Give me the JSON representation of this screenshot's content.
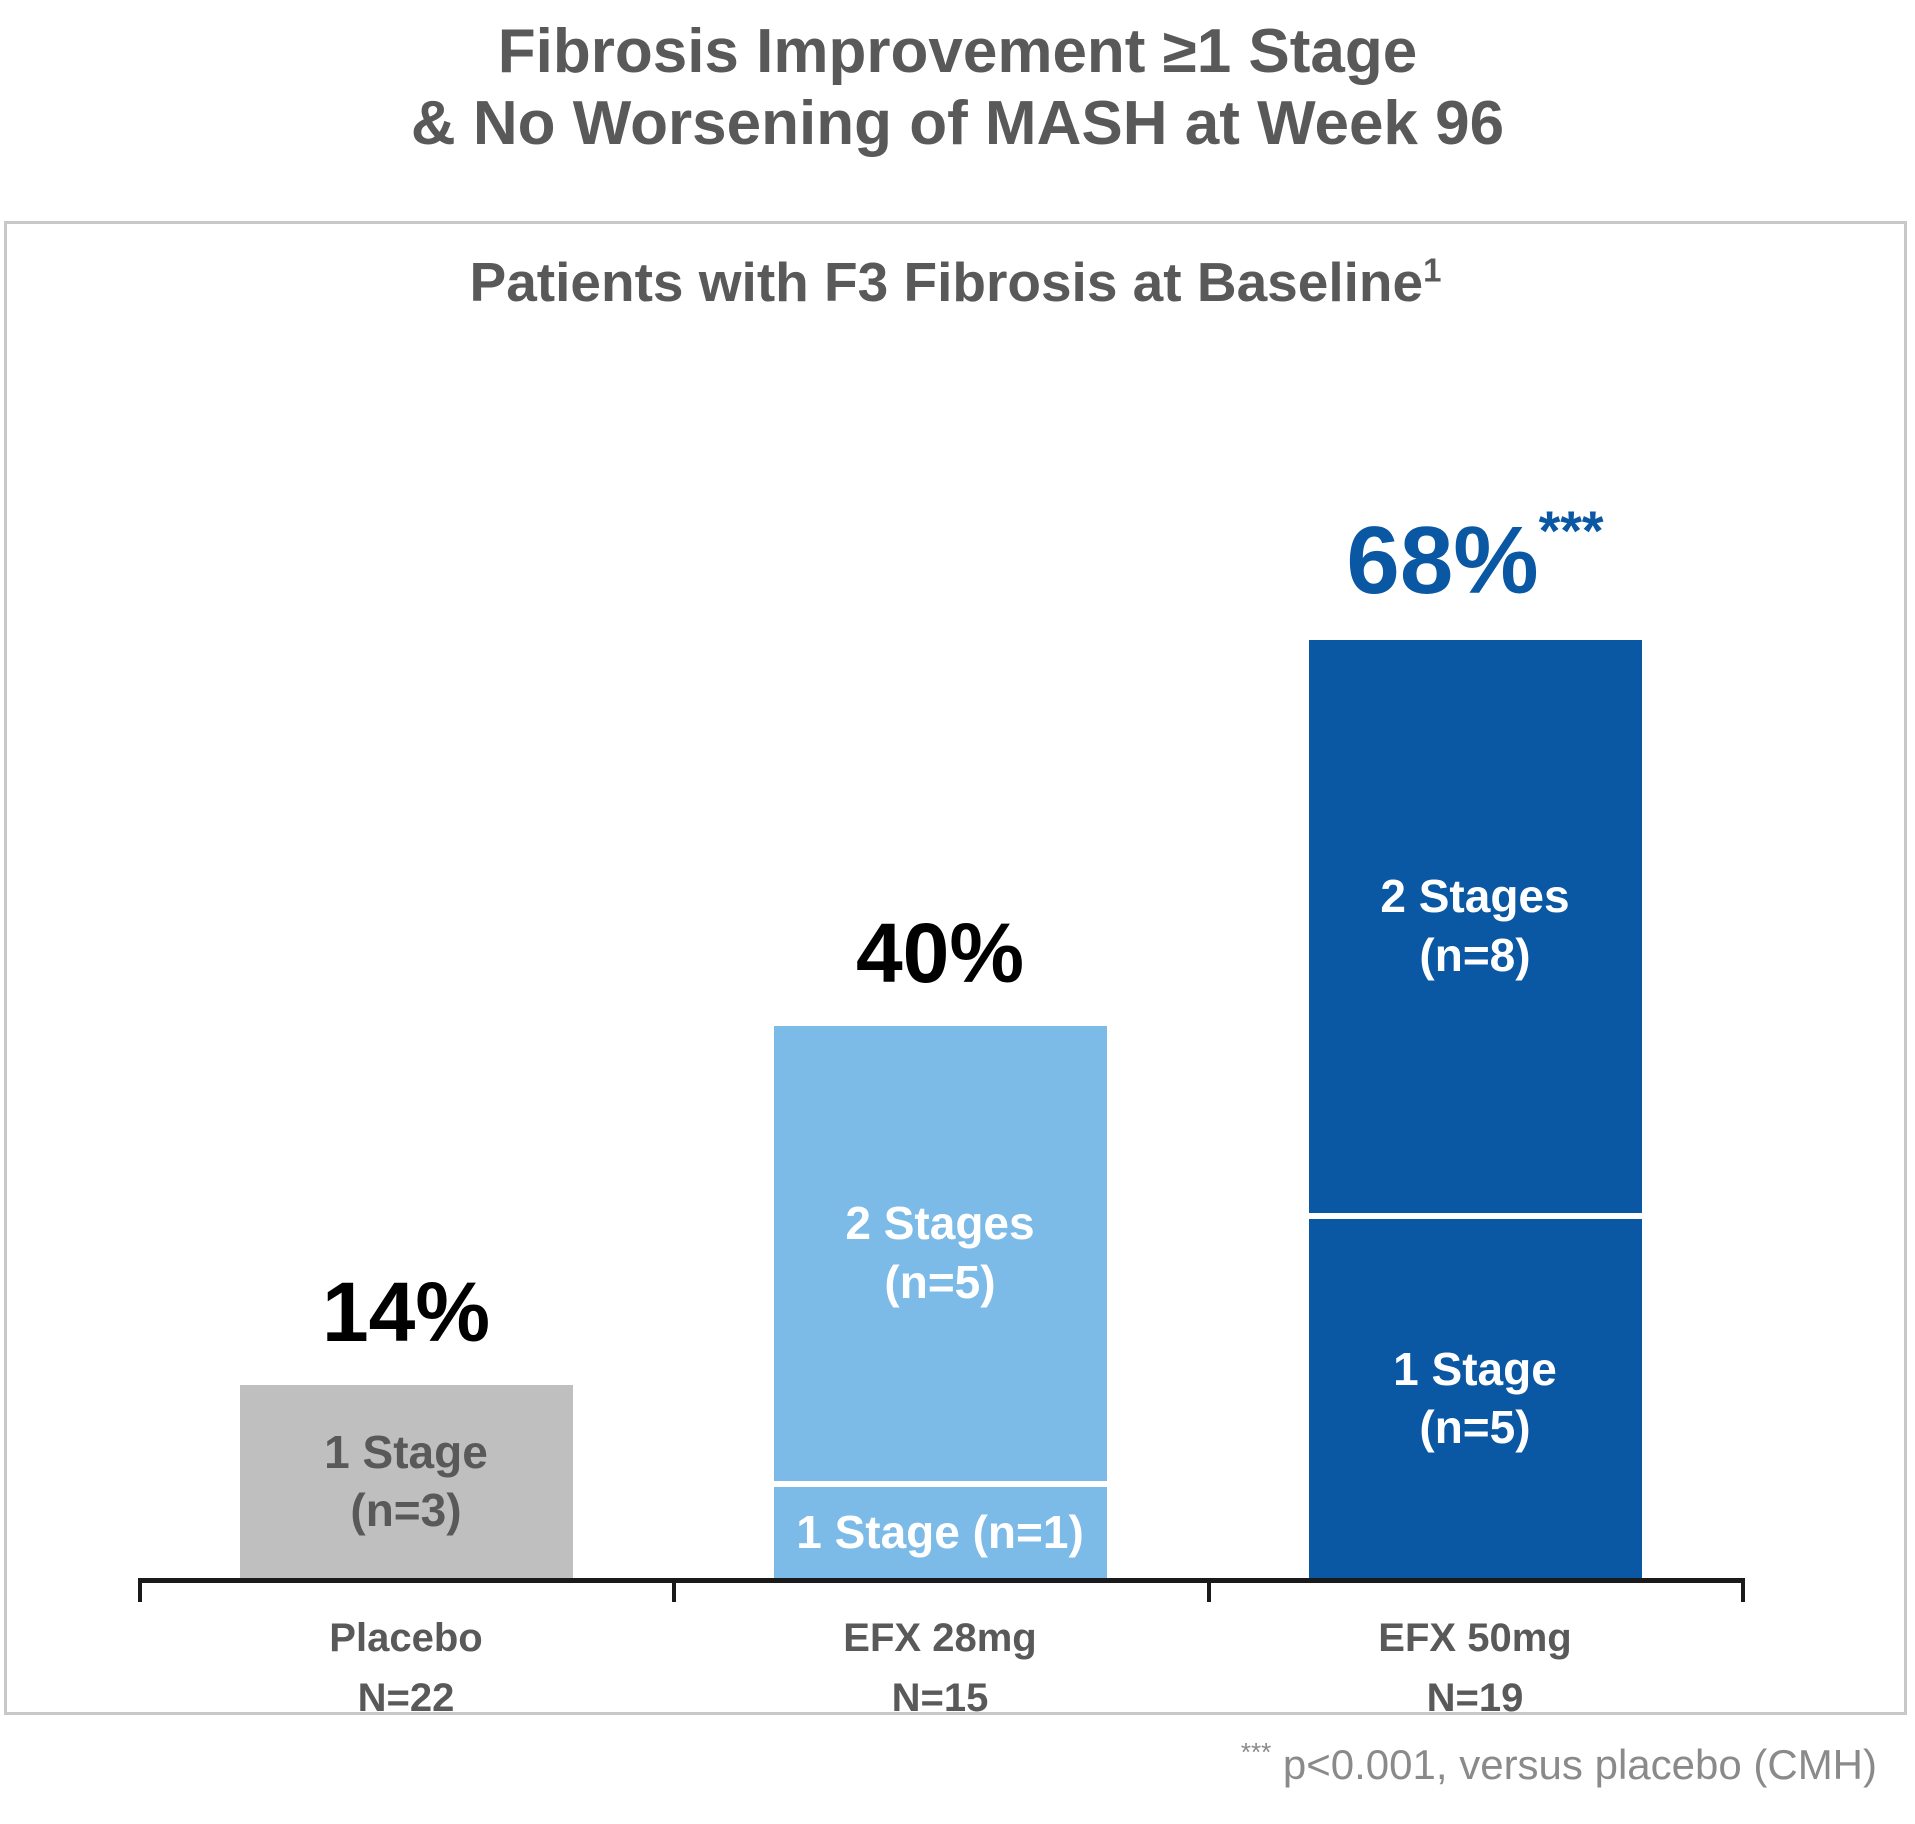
{
  "title": {
    "line1": "Fibrosis Improvement ≥1 Stage",
    "line2": "& No Worsening of MASH at Week 96"
  },
  "panel": {
    "subtitle": "Patients with F3 Fibrosis at Baseline",
    "subtitle_superscript": "1"
  },
  "footnote": {
    "asterisks": "***",
    "text": " p<0.001, versus placebo (CMH)"
  },
  "colors": {
    "title_gray": "#595959",
    "panel_border": "#C8C8C8",
    "axis_black": "#1A1A1A",
    "placebo_bar": "#BFBFBF",
    "efx28_bar": "#7CBAE8",
    "efx50_bar": "#0A57A3",
    "footnote_gray": "#8A8A8A",
    "value_label_black": "#000000"
  },
  "chart_data": {
    "type": "bar",
    "stacked": true,
    "unit": "percent of patients",
    "ylim": [
      0,
      100
    ],
    "grid": false,
    "legend": "none",
    "categories": [
      "Placebo",
      "EFX 28mg",
      "EFX 50mg"
    ],
    "category_sublabels": [
      "N=22",
      "N=15",
      "N=19"
    ],
    "bars": [
      {
        "group": "Placebo",
        "group_n": 22,
        "total_pct": 14,
        "total_label": "14%",
        "significance": "",
        "color": "#BFBFBF",
        "value_label_color": "#000000",
        "segment_text_color": "#595959",
        "segments": [
          {
            "name": "1 Stage",
            "n": 3,
            "pct": 14,
            "lines": [
              "1 Stage",
              "(n=3)"
            ]
          }
        ]
      },
      {
        "group": "EFX 28mg",
        "group_n": 15,
        "total_pct": 40,
        "total_label": "40%",
        "significance": "",
        "color": "#7CBAE8",
        "value_label_color": "#000000",
        "segment_text_color": "#FFFFFF",
        "segments": [
          {
            "name": "1 Stage",
            "n": 1,
            "pct": 6.7,
            "lines": [
              "1 Stage (n=1)"
            ]
          },
          {
            "name": "2 Stages",
            "n": 5,
            "pct": 33.3,
            "lines": [
              "2 Stages",
              "(n=5)"
            ]
          }
        ]
      },
      {
        "group": "EFX 50mg",
        "group_n": 19,
        "total_pct": 68,
        "total_label": "68%",
        "significance": "***",
        "color": "#0A57A3",
        "value_label_color": "#0A57A3",
        "segment_text_color": "#FFFFFF",
        "segments": [
          {
            "name": "1 Stage",
            "n": 5,
            "pct": 26.2,
            "lines": [
              "1 Stage",
              "(n=5)"
            ]
          },
          {
            "name": "2 Stages",
            "n": 8,
            "pct": 41.8,
            "lines": [
              "2 Stages",
              "(n=8)"
            ]
          }
        ]
      }
    ]
  }
}
